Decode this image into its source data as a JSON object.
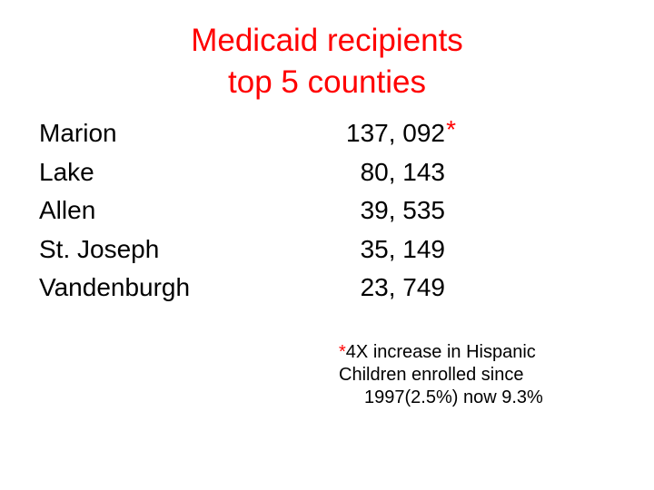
{
  "title": {
    "line1": "Medicaid recipients",
    "line2": "top 5 counties"
  },
  "rows": [
    {
      "county": "Marion",
      "value": "137, 092",
      "marker": "*"
    },
    {
      "county": "Lake",
      "value": "80, 143"
    },
    {
      "county": "Allen",
      "value": "39, 535"
    },
    {
      "county": "St. Joseph",
      "value": "35, 149"
    },
    {
      "county": "Vandenburgh",
      "value": "23, 749"
    }
  ],
  "footnote": {
    "marker": "*",
    "line1": "4X increase in Hispanic",
    "line2": "Children enrolled since",
    "line3": "1997(2.5%) now 9.3%"
  },
  "colors": {
    "title": "#ff0000",
    "text": "#000000",
    "marker": "#ff0000",
    "background": "#ffffff"
  }
}
